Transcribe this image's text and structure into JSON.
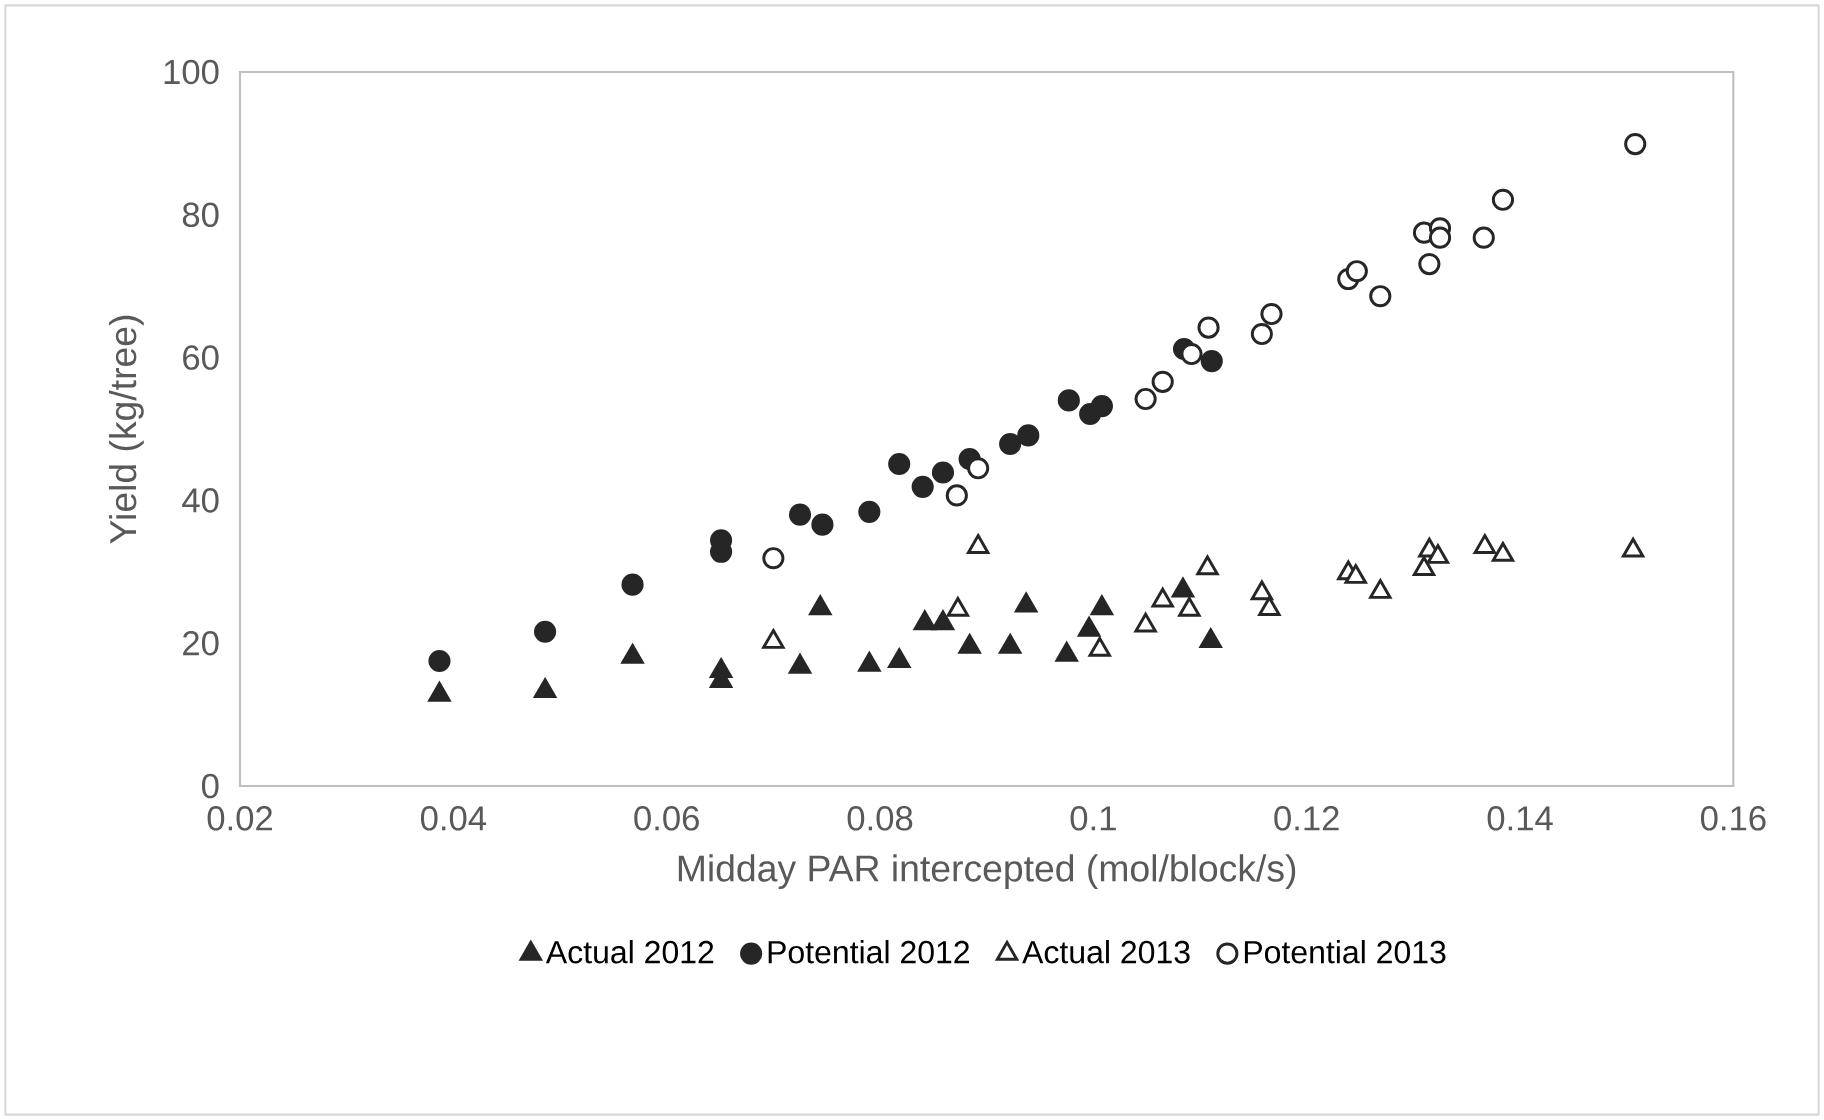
{
  "chart_data": {
    "type": "scatter",
    "xlabel": "Midday PAR intercepted (mol/block/s)",
    "ylabel": "Yield (kg/tree)",
    "xlim": [
      0.02,
      0.16
    ],
    "xticks": [
      0.02,
      0.04,
      0.06,
      0.08,
      0.1,
      0.12,
      0.14,
      0.16
    ],
    "ylim": [
      0,
      100
    ],
    "yticks": [
      0,
      20,
      40,
      60,
      80,
      100
    ],
    "grid": false,
    "legend": "bottom",
    "series": [
      {
        "name": "Actual 2012",
        "color": "#262626",
        "marker": "triangle",
        "x": [
          0.0387,
          0.0486,
          0.0568,
          0.0651,
          0.0651,
          0.0725,
          0.0744,
          0.079,
          0.0818,
          0.0842,
          0.0859,
          0.0884,
          0.0922,
          0.0937,
          0.0975,
          0.0996,
          0.1008,
          0.1084,
          0.111
        ],
        "values": [
          12.8,
          13.3,
          18.1,
          16.1,
          14.7,
          16.7,
          24.9,
          17.0,
          17.5,
          22.8,
          22.8,
          19.5,
          19.5,
          25.3,
          18.4,
          21.9,
          24.9,
          27.4,
          20.3
        ]
      },
      {
        "name": "Potential 2012",
        "color": "#262626",
        "marker": "circle",
        "x": [
          0.0387,
          0.0486,
          0.0568,
          0.0651,
          0.0651,
          0.0725,
          0.0746,
          0.079,
          0.0818,
          0.084,
          0.0859,
          0.0884,
          0.0922,
          0.0939,
          0.0977,
          0.0997,
          0.1008,
          0.1085,
          0.1111
        ],
        "values": [
          17.5,
          21.6,
          28.2,
          34.4,
          32.8,
          38.0,
          36.6,
          38.4,
          45.1,
          41.9,
          43.9,
          45.8,
          47.9,
          49.1,
          54.0,
          52.1,
          53.2,
          61.2,
          59.5
        ]
      },
      {
        "name": "Actual 2013",
        "color": "#262626",
        "marker": "triangle-open",
        "x": [
          0.07,
          0.0873,
          0.0892,
          0.1006,
          0.1049,
          0.1065,
          0.109,
          0.1107,
          0.1158,
          0.1165,
          0.1239,
          0.1246,
          0.1269,
          0.131,
          0.1315,
          0.1323,
          0.1367,
          0.1384,
          0.1506
        ],
        "values": [
          20.2,
          24.7,
          33.5,
          19.1,
          22.5,
          26.0,
          24.7,
          30.5,
          27.0,
          24.8,
          29.8,
          29.3,
          27.2,
          30.4,
          33.0,
          32.1,
          33.5,
          32.4,
          33.0
        ]
      },
      {
        "name": "Potential 2013",
        "color": "#262626",
        "marker": "circle-open",
        "x": [
          0.07,
          0.0872,
          0.0892,
          0.1049,
          0.1065,
          0.1092,
          0.1108,
          0.1158,
          0.1167,
          0.1239,
          0.1247,
          0.1269,
          0.131,
          0.1315,
          0.1325,
          0.1325,
          0.1366,
          0.1384,
          0.1508
        ],
        "values": [
          31.9,
          40.7,
          44.5,
          54.2,
          56.6,
          60.5,
          64.2,
          63.3,
          66.1,
          71.0,
          72.1,
          68.6,
          77.5,
          73.1,
          78.1,
          76.8,
          76.8,
          82.1,
          89.9
        ]
      }
    ]
  }
}
